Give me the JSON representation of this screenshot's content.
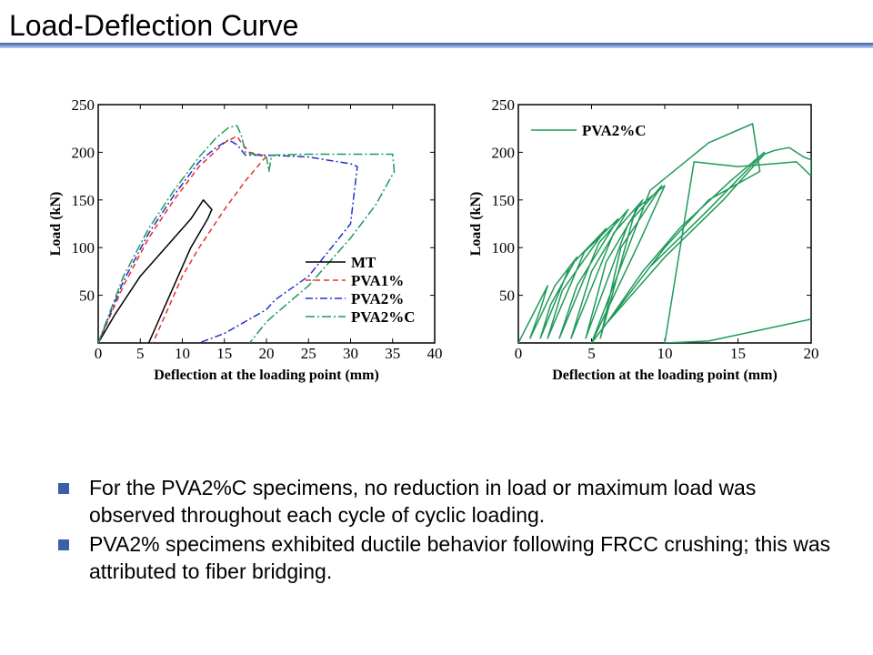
{
  "slide": {
    "title": "Load-Deflection Curve"
  },
  "colors": {
    "MT": "#000000",
    "PVA1%": "#e8302b",
    "PVA2%": "#2233cc",
    "PVA2%C": "#1f9a5a",
    "bullet": "#3a5fa8",
    "title_rule": "#3a5fa8"
  },
  "chart_data": [
    {
      "type": "line",
      "xlabel": "Deflection at the loading point (mm)",
      "ylabel": "Load (kN)",
      "xlim": [
        0,
        40
      ],
      "ylim": [
        0,
        250
      ],
      "xticks": [
        0,
        5,
        10,
        15,
        20,
        25,
        30,
        35,
        40
      ],
      "yticks": [
        50,
        100,
        150,
        200,
        250
      ],
      "legend_position": "bottom-right",
      "series": [
        {
          "name": "MT",
          "color": "#000000",
          "dash": "",
          "x": [
            0,
            2,
            5,
            8,
            11,
            12.5,
            13.5,
            13,
            11,
            9,
            7,
            6
          ],
          "y": [
            0,
            30,
            70,
            100,
            130,
            150,
            140,
            130,
            100,
            60,
            20,
            0
          ]
        },
        {
          "name": "PVA1%",
          "color": "#e8302b",
          "dash": "6,4",
          "x": [
            0,
            3,
            6,
            9,
            12,
            15,
            16.5,
            17,
            18,
            19,
            20,
            17.5,
            15,
            12,
            10,
            8,
            6.5
          ],
          "y": [
            0,
            60,
            110,
            150,
            185,
            210,
            217,
            210,
            200,
            198,
            196,
            170,
            140,
            100,
            70,
            30,
            0
          ]
        },
        {
          "name": "PVA2%",
          "color": "#2233cc",
          "dash": "8,3,2,3",
          "x": [
            0,
            3,
            6,
            9,
            12,
            14,
            15.5,
            16.5,
            17.5,
            20,
            25,
            30,
            30.8,
            30,
            25,
            21,
            20,
            15,
            12
          ],
          "y": [
            0,
            65,
            115,
            155,
            190,
            205,
            213,
            208,
            197,
            197,
            195,
            188,
            185,
            125,
            70,
            45,
            35,
            10,
            0
          ]
        },
        {
          "name": "PVA2%C",
          "color": "#1f9a5a",
          "dash": "10,3,2,3",
          "x": [
            0,
            3,
            6,
            9,
            12,
            14,
            15.5,
            16.5,
            17,
            17.5,
            18.5,
            20,
            20.3,
            20.6,
            25,
            30,
            35,
            35.2,
            33,
            30,
            25,
            21,
            20,
            18
          ],
          "y": [
            0,
            70,
            120,
            160,
            195,
            215,
            226,
            228,
            218,
            200,
            198,
            195,
            180,
            197,
            198,
            198,
            198,
            180,
            145,
            110,
            60,
            30,
            22,
            0
          ]
        }
      ]
    },
    {
      "type": "line",
      "xlabel": "Deflection at the loading point (mm)",
      "ylabel": "Load (kN)",
      "xlim": [
        0,
        20
      ],
      "ylim": [
        0,
        250
      ],
      "xticks": [
        0,
        5,
        10,
        15,
        20
      ],
      "yticks": [
        50,
        100,
        150,
        200,
        250
      ],
      "legend_position": "top-left",
      "series": [
        {
          "name": "PVA2%C",
          "color": "#1f9a5a",
          "dash": "",
          "x": [
            0,
            1,
            2,
            1.5,
            0.8,
            2.5,
            4,
            2.2,
            1.5,
            3.5,
            6,
            3,
            2,
            4.5,
            6.8,
            4,
            2.8,
            5.5,
            7.5,
            5,
            3.6,
            6.5,
            8.5,
            6,
            4.6,
            7.5,
            9.8,
            7,
            5.6,
            8,
            10,
            8.4,
            5,
            9,
            13,
            16,
            16.5,
            13,
            10,
            7.5,
            5,
            9,
            13,
            16.8,
            14.5,
            11,
            8.5,
            6,
            10,
            14,
            16.8,
            17.5,
            18.5,
            19.5,
            20,
            20,
            19,
            15,
            12,
            10,
            13,
            20
          ],
          "y": [
            0,
            30,
            60,
            35,
            5,
            60,
            90,
            40,
            5,
            80,
            120,
            55,
            5,
            95,
            130,
            60,
            5,
            105,
            140,
            75,
            5,
            115,
            150,
            85,
            5,
            125,
            165,
            100,
            5,
            140,
            165,
            110,
            0,
            160,
            210,
            230,
            180,
            150,
            100,
            50,
            0,
            80,
            140,
            200,
            170,
            120,
            75,
            20,
            90,
            150,
            198,
            202,
            205,
            195,
            192,
            175,
            190,
            185,
            190,
            0,
            2,
            25
          ]
        }
      ]
    }
  ],
  "bullets": [
    "For the PVA2%C specimens, no reduction in load or maximum load was observed throughout each cycle of cyclic loading.",
    "PVA2% specimens exhibited ductile behavior following FRCC crushing; this was attributed to fiber bridging."
  ]
}
